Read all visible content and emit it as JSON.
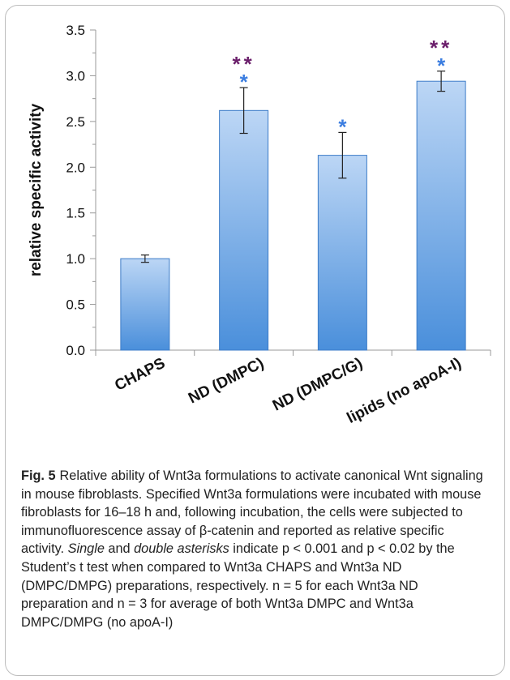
{
  "chart_data": {
    "type": "bar",
    "ylabel": "relative specific activity",
    "ylim": [
      0,
      3.5
    ],
    "yticks": [
      "0.0",
      "0.5",
      "1.0",
      "1.5",
      "2.0",
      "2.5",
      "3.0",
      "3.5"
    ],
    "grid": false,
    "categories": [
      "CHAPS",
      "ND (DMPC)",
      "ND (DMPC/G)",
      "lipids (no apoA-I)"
    ],
    "values": [
      1.0,
      2.62,
      2.13,
      2.94
    ],
    "error": [
      0.04,
      0.25,
      0.25,
      0.11
    ],
    "single_asterisk": [
      false,
      true,
      true,
      true
    ],
    "double_asterisk": [
      false,
      true,
      false,
      true
    ],
    "colors": {
      "bar_top": "#bcd6f5",
      "bar_bottom": "#4a8fdb",
      "bar_edge": "#3d7cc8",
      "single_asterisk": "#3b7de0",
      "double_asterisk": "#6b1f6b",
      "axis": "#999999",
      "text": "#111111"
    }
  },
  "caption": {
    "label": "Fig. 5",
    "part1": "Relative ability of Wnt3a formulations to activate canonical Wnt signaling in mouse fibroblasts. Specified Wnt3a formulations were incubated with mouse fibroblasts for 16–18 h and, following incubation, the cells were subjected to immunofluorescence assay of β-catenin and reported as relative specific activity. ",
    "single": "Single",
    "and": " and ",
    "double": "double asterisks",
    "part2": " indicate p < 0.001 and p < 0.02 by the Student’s t test when compared to Wnt3a CHAPS and Wnt3a ND (DMPC/DMPG) preparations, respectively. n = 5 for each Wnt3a ND preparation and n = 3 for average of both Wnt3a DMPC and Wnt3a DMPC/DMPG (no apoA-I)"
  }
}
